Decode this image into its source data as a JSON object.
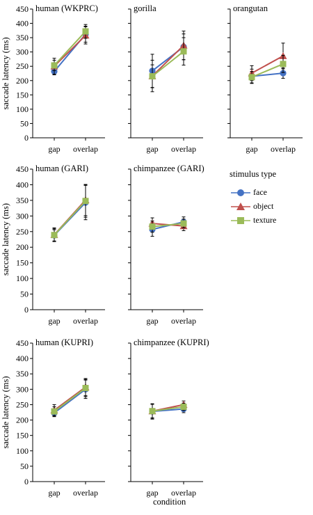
{
  "chart_data": [
    {
      "type": "line",
      "title": "human (WKPRC)",
      "ylabel": "saccade latency (ms)",
      "categories": [
        "gap",
        "overlap"
      ],
      "ylim": [
        0,
        450
      ],
      "yticks": [
        0,
        50,
        100,
        150,
        200,
        250,
        300,
        350,
        400,
        450
      ],
      "series": [
        {
          "name": "face",
          "values": [
            232,
            362
          ],
          "errors": [
            12,
            28
          ]
        },
        {
          "name": "object",
          "values": [
            250,
            358
          ],
          "errors": [
            28,
            30
          ]
        },
        {
          "name": "texture",
          "values": [
            253,
            372
          ],
          "errors": [
            18,
            24
          ]
        }
      ]
    },
    {
      "type": "line",
      "title": "gorilla",
      "categories": [
        "gap",
        "overlap"
      ],
      "ylim": [
        0,
        450
      ],
      "series": [
        {
          "name": "face",
          "values": [
            234,
            318
          ],
          "errors": [
            58,
            45
          ]
        },
        {
          "name": "object",
          "values": [
            216,
            323
          ],
          "errors": [
            55,
            50
          ]
        },
        {
          "name": "texture",
          "values": [
            215,
            302
          ],
          "errors": [
            40,
            48
          ]
        }
      ]
    },
    {
      "type": "line",
      "title": "orangutan",
      "categories": [
        "gap",
        "overlap"
      ],
      "ylim": [
        0,
        450
      ],
      "series": [
        {
          "name": "face",
          "values": [
            215,
            226
          ],
          "errors": [
            25,
            18
          ]
        },
        {
          "name": "object",
          "values": [
            226,
            286
          ],
          "errors": [
            26,
            45
          ]
        },
        {
          "name": "texture",
          "values": [
            212,
            258
          ],
          "errors": [
            20,
            30
          ]
        }
      ]
    },
    {
      "type": "line",
      "title": "human (GARI)",
      "ylabel": "saccade latency (ms)",
      "categories": [
        "gap",
        "overlap"
      ],
      "ylim": [
        0,
        450
      ],
      "yticks": [
        0,
        50,
        100,
        150,
        200,
        250,
        300,
        350,
        400,
        450
      ],
      "series": [
        {
          "name": "face",
          "values": [
            238,
            343
          ],
          "errors": [
            18,
            55
          ]
        },
        {
          "name": "object",
          "values": [
            240,
            351
          ],
          "errors": [
            22,
            50
          ]
        },
        {
          "name": "texture",
          "values": [
            239,
            348
          ],
          "errors": [
            20,
            52
          ]
        }
      ]
    },
    {
      "type": "line",
      "title": "chimpanzee (GARI)",
      "categories": [
        "gap",
        "overlap"
      ],
      "ylim": [
        0,
        450
      ],
      "series": [
        {
          "name": "face",
          "values": [
            257,
            281
          ],
          "errors": [
            22,
            16
          ]
        },
        {
          "name": "object",
          "values": [
            276,
            268
          ],
          "errors": [
            18,
            15
          ]
        },
        {
          "name": "texture",
          "values": [
            266,
            276
          ],
          "errors": [
            18,
            14
          ]
        }
      ]
    },
    {
      "type": "line",
      "title": "human (KUPRI)",
      "ylabel": "saccade latency (ms)",
      "categories": [
        "gap",
        "overlap"
      ],
      "ylim": [
        0,
        450
      ],
      "yticks": [
        0,
        50,
        100,
        150,
        200,
        250,
        300,
        350,
        400,
        450
      ],
      "series": [
        {
          "name": "face",
          "values": [
            223,
            300
          ],
          "errors": [
            12,
            30
          ]
        },
        {
          "name": "object",
          "values": [
            232,
            307
          ],
          "errors": [
            18,
            28
          ]
        },
        {
          "name": "texture",
          "values": [
            228,
            304
          ],
          "errors": [
            15,
            28
          ]
        }
      ]
    },
    {
      "type": "line",
      "title": "chimpanzee (KUPRI)",
      "categories": [
        "gap",
        "overlap"
      ],
      "ylim": [
        0,
        450
      ],
      "series": [
        {
          "name": "face",
          "values": [
            228,
            236
          ],
          "errors": [
            25,
            12
          ]
        },
        {
          "name": "object",
          "values": [
            229,
            250
          ],
          "errors": [
            22,
            12
          ]
        },
        {
          "name": "texture",
          "values": [
            229,
            243
          ],
          "errors": [
            23,
            12
          ]
        }
      ]
    }
  ],
  "legend": {
    "title": "stimulus type",
    "placement": "right-middle",
    "items": [
      {
        "name": "face",
        "color": "#4472C4",
        "marker": "circle"
      },
      {
        "name": "object",
        "color": "#C0504D",
        "marker": "triangle"
      },
      {
        "name": "texture",
        "color": "#9BBB59",
        "marker": "square"
      }
    ]
  },
  "xlabel": "condition"
}
